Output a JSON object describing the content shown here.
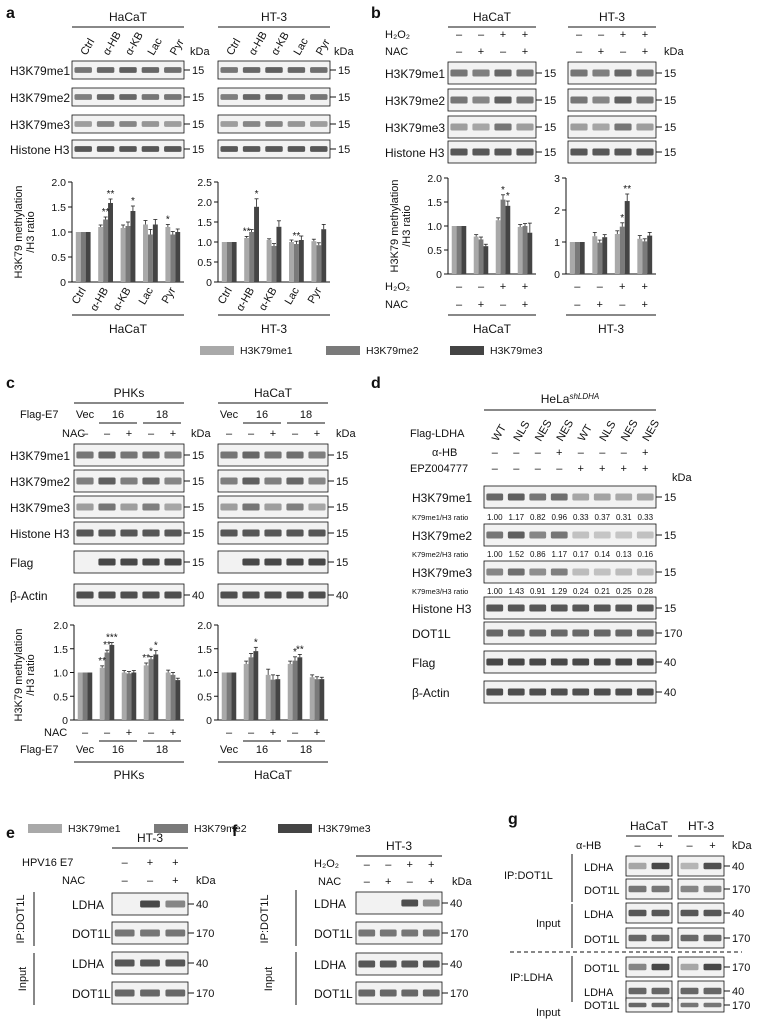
{
  "colors": {
    "me1": "#a9a9a9",
    "me2": "#7a7a7a",
    "me3": "#444444",
    "blot_bg": "#f2f2f2",
    "band": "#2e2e2e"
  },
  "panel_labels": [
    "a",
    "b",
    "c",
    "d",
    "e",
    "f",
    "g"
  ],
  "common": {
    "kda": "kDa",
    "minus": "–",
    "plus": "+",
    "h3k79me1": "H3K79me1",
    "h3k79me2": "H3K79me2",
    "h3k79me3": "H3K79me3",
    "histone_h3": "Histone H3",
    "flag": "Flag",
    "b_actin": "β-Actin",
    "dot1l": "DOT1L",
    "ldha": "LDHA",
    "ylabel_1": "H3K79 methylation",
    "ylabel_2": "/H3 ratio",
    "h2o2": "H₂O₂",
    "nac": "NAC",
    "hacat": "HaCaT",
    "ht3": "HT-3",
    "phks": "PHKs",
    "legend": [
      "H3K79me1",
      "H3K79me2",
      "H3K79me3"
    ],
    "ip_dot1l": "IP:DOT1L",
    "ip_ldha": "IP:LDHA",
    "input": "Input",
    "ahb": "α-HB"
  },
  "mw": {
    "m15": "15",
    "m40": "40",
    "m170": "170"
  },
  "panel_a": {
    "lanes": [
      "Ctrl",
      "α-HB",
      "α-KB",
      "Lac",
      "Pyr"
    ]
  },
  "panel_c": {
    "flag_e7": "Flag-E7",
    "vec": "Vec",
    "n16": "16",
    "n18": "18"
  },
  "panel_d": {
    "cell": "HeLa",
    "cell_sup": "shLDHA",
    "flag_ldha": "Flag-LDHA",
    "epz": "EPZ004777",
    "lanes": [
      "WT",
      "NLS",
      "NES",
      "NES",
      "WT",
      "NLS",
      "NES",
      "NES"
    ],
    "ahb_row": [
      "–",
      "–",
      "–",
      "+",
      "–",
      "–",
      "–",
      "+"
    ],
    "epz_row": [
      "–",
      "–",
      "–",
      "–",
      "+",
      "+",
      "+",
      "+"
    ],
    "ratio_me1_label": "K79me1/H3 ratio",
    "ratio_me2_label": "K79me2/H3 ratio",
    "ratio_me3_label": "K79me3/H3 ratio",
    "ratio_me1": [
      "1.00",
      "1.17",
      "0.82",
      "0.96",
      "0.33",
      "0.37",
      "0.31",
      "0.33"
    ],
    "ratio_me2": [
      "1.00",
      "1.52",
      "0.86",
      "1.17",
      "0.17",
      "0.14",
      "0.13",
      "0.16"
    ],
    "ratio_me3": [
      "1.00",
      "1.43",
      "0.91",
      "1.29",
      "0.24",
      "0.21",
      "0.25",
      "0.28"
    ]
  },
  "panel_e": {
    "hpv": "HPV16 E7"
  },
  "chart_data": [
    {
      "type": "bar",
      "panel": "a",
      "group": "HaCaT",
      "categories": [
        "Ctrl",
        "α-HB",
        "α-KB",
        "Lac",
        "Pyr"
      ],
      "ylim": [
        0,
        2.0
      ],
      "yticks": [
        "0",
        "0.5",
        "1.0",
        "1.5",
        "2.0"
      ],
      "series": [
        {
          "name": "H3K79me1",
          "values": [
            1.0,
            1.1,
            1.08,
            1.15,
            1.1
          ],
          "errors": [
            0,
            0.04,
            0.06,
            0.08,
            0.05
          ]
        },
        {
          "name": "H3K79me2",
          "values": [
            1.0,
            1.25,
            1.12,
            0.95,
            0.95
          ],
          "errors": [
            0,
            0.05,
            0.08,
            0.1,
            0.06
          ]
        },
        {
          "name": "H3K79me3",
          "values": [
            1.0,
            1.58,
            1.42,
            1.15,
            1.0
          ],
          "errors": [
            0,
            0.08,
            0.1,
            0.1,
            0.06
          ]
        }
      ],
      "stars": [
        {
          "cat": 1,
          "s": 1,
          "t": "**"
        },
        {
          "cat": 1,
          "s": 2,
          "t": "**"
        },
        {
          "cat": 2,
          "s": 2,
          "t": "*"
        },
        {
          "cat": 4,
          "s": 0,
          "t": "*"
        }
      ]
    },
    {
      "type": "bar",
      "panel": "a",
      "group": "HT-3",
      "categories": [
        "Ctrl",
        "α-HB",
        "α-KB",
        "Lac",
        "Pyr"
      ],
      "ylim": [
        0,
        2.5
      ],
      "yticks": [
        "0",
        "0.5",
        "1.0",
        "1.5",
        "2.0",
        "2.5"
      ],
      "series": [
        {
          "name": "H3K79me1",
          "values": [
            1.0,
            1.1,
            1.05,
            1.0,
            1.02
          ],
          "errors": [
            0,
            0.04,
            0.03,
            0.05,
            0.05
          ]
        },
        {
          "name": "H3K79me2",
          "values": [
            1.0,
            1.25,
            0.9,
            0.95,
            0.92
          ],
          "errors": [
            0,
            0.06,
            0.06,
            0.07,
            0.06
          ]
        },
        {
          "name": "H3K79me3",
          "values": [
            1.0,
            1.88,
            1.38,
            1.05,
            1.32
          ],
          "errors": [
            0,
            0.2,
            0.15,
            0.1,
            0.12
          ]
        }
      ],
      "stars": [
        {
          "cat": 1,
          "s": 0,
          "t": "**"
        },
        {
          "cat": 1,
          "s": 2,
          "t": "*"
        },
        {
          "cat": 3,
          "s": 1,
          "t": "**"
        }
      ]
    },
    {
      "type": "bar",
      "panel": "b",
      "group": "HaCaT",
      "categories": [
        "1",
        "2",
        "3",
        "4"
      ],
      "ylim": [
        0,
        2.0
      ],
      "yticks": [
        "0",
        "0.5",
        "1.0",
        "1.5",
        "2.0"
      ],
      "series": [
        {
          "name": "H3K79me1",
          "values": [
            1.0,
            0.78,
            1.12,
            0.98
          ],
          "errors": [
            0,
            0.04,
            0.05,
            0.05
          ]
        },
        {
          "name": "H3K79me2",
          "values": [
            1.0,
            0.72,
            1.55,
            1.0
          ],
          "errors": [
            0,
            0.05,
            0.1,
            0.05
          ]
        },
        {
          "name": "H3K79me3",
          "values": [
            1.0,
            0.58,
            1.42,
            0.86
          ],
          "errors": [
            0,
            0.04,
            0.1,
            0.2
          ]
        }
      ],
      "stars": [
        {
          "cat": 2,
          "s": 1,
          "t": "*"
        },
        {
          "cat": 2,
          "s": 2,
          "t": "*"
        }
      ]
    },
    {
      "type": "bar",
      "panel": "b",
      "group": "HT-3",
      "categories": [
        "1",
        "2",
        "3",
        "4"
      ],
      "ylim": [
        0,
        3
      ],
      "yticks": [
        "0",
        "1",
        "2",
        "3"
      ],
      "series": [
        {
          "name": "H3K79me1",
          "values": [
            1.0,
            1.18,
            1.25,
            1.1
          ],
          "errors": [
            0,
            0.12,
            0.1,
            0.1
          ]
        },
        {
          "name": "H3K79me2",
          "values": [
            1.0,
            0.98,
            1.48,
            1.02
          ],
          "errors": [
            0,
            0.08,
            0.12,
            0.08
          ]
        },
        {
          "name": "H3K79me3",
          "values": [
            1.0,
            1.15,
            2.28,
            1.2
          ],
          "errors": [
            0,
            0.08,
            0.22,
            0.1
          ]
        }
      ],
      "stars": [
        {
          "cat": 2,
          "s": 1,
          "t": "*"
        },
        {
          "cat": 2,
          "s": 2,
          "t": "**"
        }
      ]
    },
    {
      "type": "bar",
      "panel": "c",
      "group": "PHKs",
      "categories": [
        "1",
        "2",
        "3",
        "4",
        "5"
      ],
      "ylim": [
        0,
        2.0
      ],
      "yticks": [
        "0",
        "0.5",
        "1.0",
        "1.5",
        "2.0"
      ],
      "series": [
        {
          "name": "H3K79me1",
          "values": [
            1.0,
            1.1,
            1.0,
            1.15,
            1.0
          ],
          "errors": [
            0,
            0.04,
            0.04,
            0.05,
            0.05
          ]
        },
        {
          "name": "H3K79me2",
          "values": [
            1.0,
            1.42,
            0.98,
            1.28,
            0.95
          ],
          "errors": [
            0,
            0.05,
            0.04,
            0.06,
            0.05
          ]
        },
        {
          "name": "H3K79me3",
          "values": [
            1.0,
            1.58,
            1.0,
            1.38,
            0.84
          ],
          "errors": [
            0,
            0.05,
            0.04,
            0.08,
            0.04
          ]
        }
      ],
      "stars": [
        {
          "cat": 1,
          "s": 0,
          "t": "**"
        },
        {
          "cat": 1,
          "s": 1,
          "t": "**"
        },
        {
          "cat": 1,
          "s": 2,
          "t": "***"
        },
        {
          "cat": 3,
          "s": 0,
          "t": "**"
        },
        {
          "cat": 3,
          "s": 1,
          "t": "*"
        },
        {
          "cat": 3,
          "s": 2,
          "t": "*"
        }
      ]
    },
    {
      "type": "bar",
      "panel": "c",
      "group": "HaCaT",
      "categories": [
        "1",
        "2",
        "3",
        "4",
        "5"
      ],
      "ylim": [
        0,
        2.0
      ],
      "yticks": [
        "0",
        "0.5",
        "1.0",
        "1.5",
        "2.0"
      ],
      "series": [
        {
          "name": "H3K79me1",
          "values": [
            1.0,
            1.18,
            0.95,
            1.18,
            0.9
          ],
          "errors": [
            0,
            0.06,
            0.12,
            0.06,
            0.05
          ]
        },
        {
          "name": "H3K79me2",
          "values": [
            1.0,
            1.32,
            0.85,
            1.25,
            0.86
          ],
          "errors": [
            0,
            0.08,
            0.1,
            0.08,
            0.05
          ]
        },
        {
          "name": "H3K79me3",
          "values": [
            1.0,
            1.45,
            0.86,
            1.32,
            0.86
          ],
          "errors": [
            0,
            0.08,
            0.08,
            0.06,
            0.04
          ]
        }
      ],
      "stars": [
        {
          "cat": 1,
          "s": 2,
          "t": "*"
        },
        {
          "cat": 3,
          "s": 1,
          "t": "*"
        },
        {
          "cat": 3,
          "s": 2,
          "t": "**"
        }
      ]
    }
  ]
}
